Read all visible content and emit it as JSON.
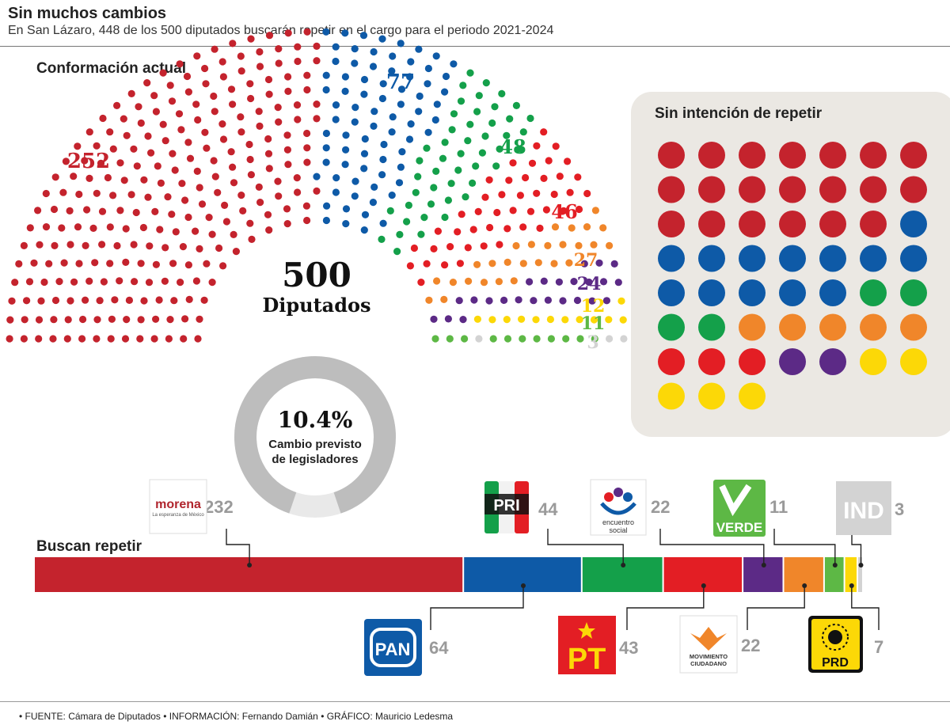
{
  "header": {
    "title": "Sin muchos cambios",
    "subtitle": "En San Lázaro, 448 de los 500 diputados buscarán repetir en el cargo para el periodo 2021-2024"
  },
  "sections": {
    "current": "Conformación actual",
    "no_repeat": "Sin intención de repetir",
    "repeat": "Buscan repetir"
  },
  "center": {
    "number": "500",
    "label": "Diputados"
  },
  "donut": {
    "value": "10.4%",
    "label_line1": "Cambio previsto",
    "label_line2": "de legisladores"
  },
  "footer": "• FUENTE: Cámara de Diputados • INFORMACIÓN: Fernando Damián • GRÁFICO: Mauricio Ledesma",
  "colors": {
    "morena": "#c4232d",
    "pan": "#0e5aa7",
    "pri": "#14a04a",
    "pes": "#e31e24",
    "pt": "#e31e24",
    "mc": "#f0862a",
    "verde": "#5db845",
    "prd": "#fcd807",
    "pes_purple": "#5c2a86",
    "ind": "#d3d3d3",
    "donut": "#bdbdbd"
  },
  "logos": {
    "morena": {
      "text": "morena",
      "tagline": "La esperanza de México"
    },
    "pri": {
      "text": "PRI"
    },
    "pes": {
      "line1": "encuentro",
      "line2": "social"
    },
    "verde": {
      "text": "VERDE"
    },
    "ind": {
      "text": "IND"
    },
    "pan": {
      "text": "PAN"
    },
    "pt": {
      "text": "PT"
    },
    "mc": {
      "line1": "MOVIMIENTO",
      "line2": "CIUDADANO"
    },
    "prd": {
      "text": "PRD"
    }
  },
  "chart_data": [
    {
      "type": "parliament",
      "title": "Conformación actual",
      "total": 500,
      "series": [
        {
          "party": "Morena",
          "seats": 252,
          "color": "#c4232d"
        },
        {
          "party": "PAN",
          "seats": 77,
          "color": "#0e5aa7"
        },
        {
          "party": "PRI",
          "seats": 48,
          "color": "#14a04a"
        },
        {
          "party": "PT",
          "seats": 46,
          "color": "#e31e24"
        },
        {
          "party": "MC",
          "seats": 27,
          "color": "#f0862a"
        },
        {
          "party": "PES",
          "seats": 24,
          "color": "#5c2a86"
        },
        {
          "party": "PRD",
          "seats": 12,
          "color": "#fcd807"
        },
        {
          "party": "PVEM",
          "seats": 11,
          "color": "#5db845"
        },
        {
          "party": "IND",
          "seats": 3,
          "color": "#d3d3d3"
        }
      ]
    },
    {
      "type": "dot-grid",
      "title": "Sin intención de repetir",
      "series": [
        {
          "color": "#c4232d",
          "count": 20
        },
        {
          "color": "#0e5aa7",
          "count": 13
        },
        {
          "color": "#14a04a",
          "count": 4
        },
        {
          "color": "#f0862a",
          "count": 5
        },
        {
          "color": "#e31e24",
          "count": 3
        },
        {
          "color": "#5c2a86",
          "count": 2
        },
        {
          "color": "#fcd807",
          "count": 5
        }
      ]
    },
    {
      "type": "bar",
      "title": "Buscan repetir",
      "total": 448,
      "series": [
        {
          "party": "Morena",
          "value": 232,
          "label": "232",
          "color": "#c4232d"
        },
        {
          "party": "PAN",
          "value": 64,
          "label": "64",
          "color": "#0e5aa7"
        },
        {
          "party": "PRI",
          "value": 44,
          "label": "44",
          "color": "#14a04a"
        },
        {
          "party": "PT",
          "value": 43,
          "label": "43",
          "color": "#e31e24"
        },
        {
          "party": "PES",
          "value": 22,
          "label": "22",
          "color": "#5c2a86"
        },
        {
          "party": "MC",
          "value": 22,
          "label": "22",
          "color": "#f0862a"
        },
        {
          "party": "PVEM",
          "value": 11,
          "label": "11",
          "color": "#5db845"
        },
        {
          "party": "PRD",
          "value": 7,
          "label": "7",
          "color": "#fcd807"
        },
        {
          "party": "IND",
          "value": 3,
          "label": "3",
          "color": "#d3d3d3"
        }
      ]
    },
    {
      "type": "donut",
      "value": 10.4,
      "unit": "%",
      "label": "Cambio previsto de legisladores"
    }
  ]
}
